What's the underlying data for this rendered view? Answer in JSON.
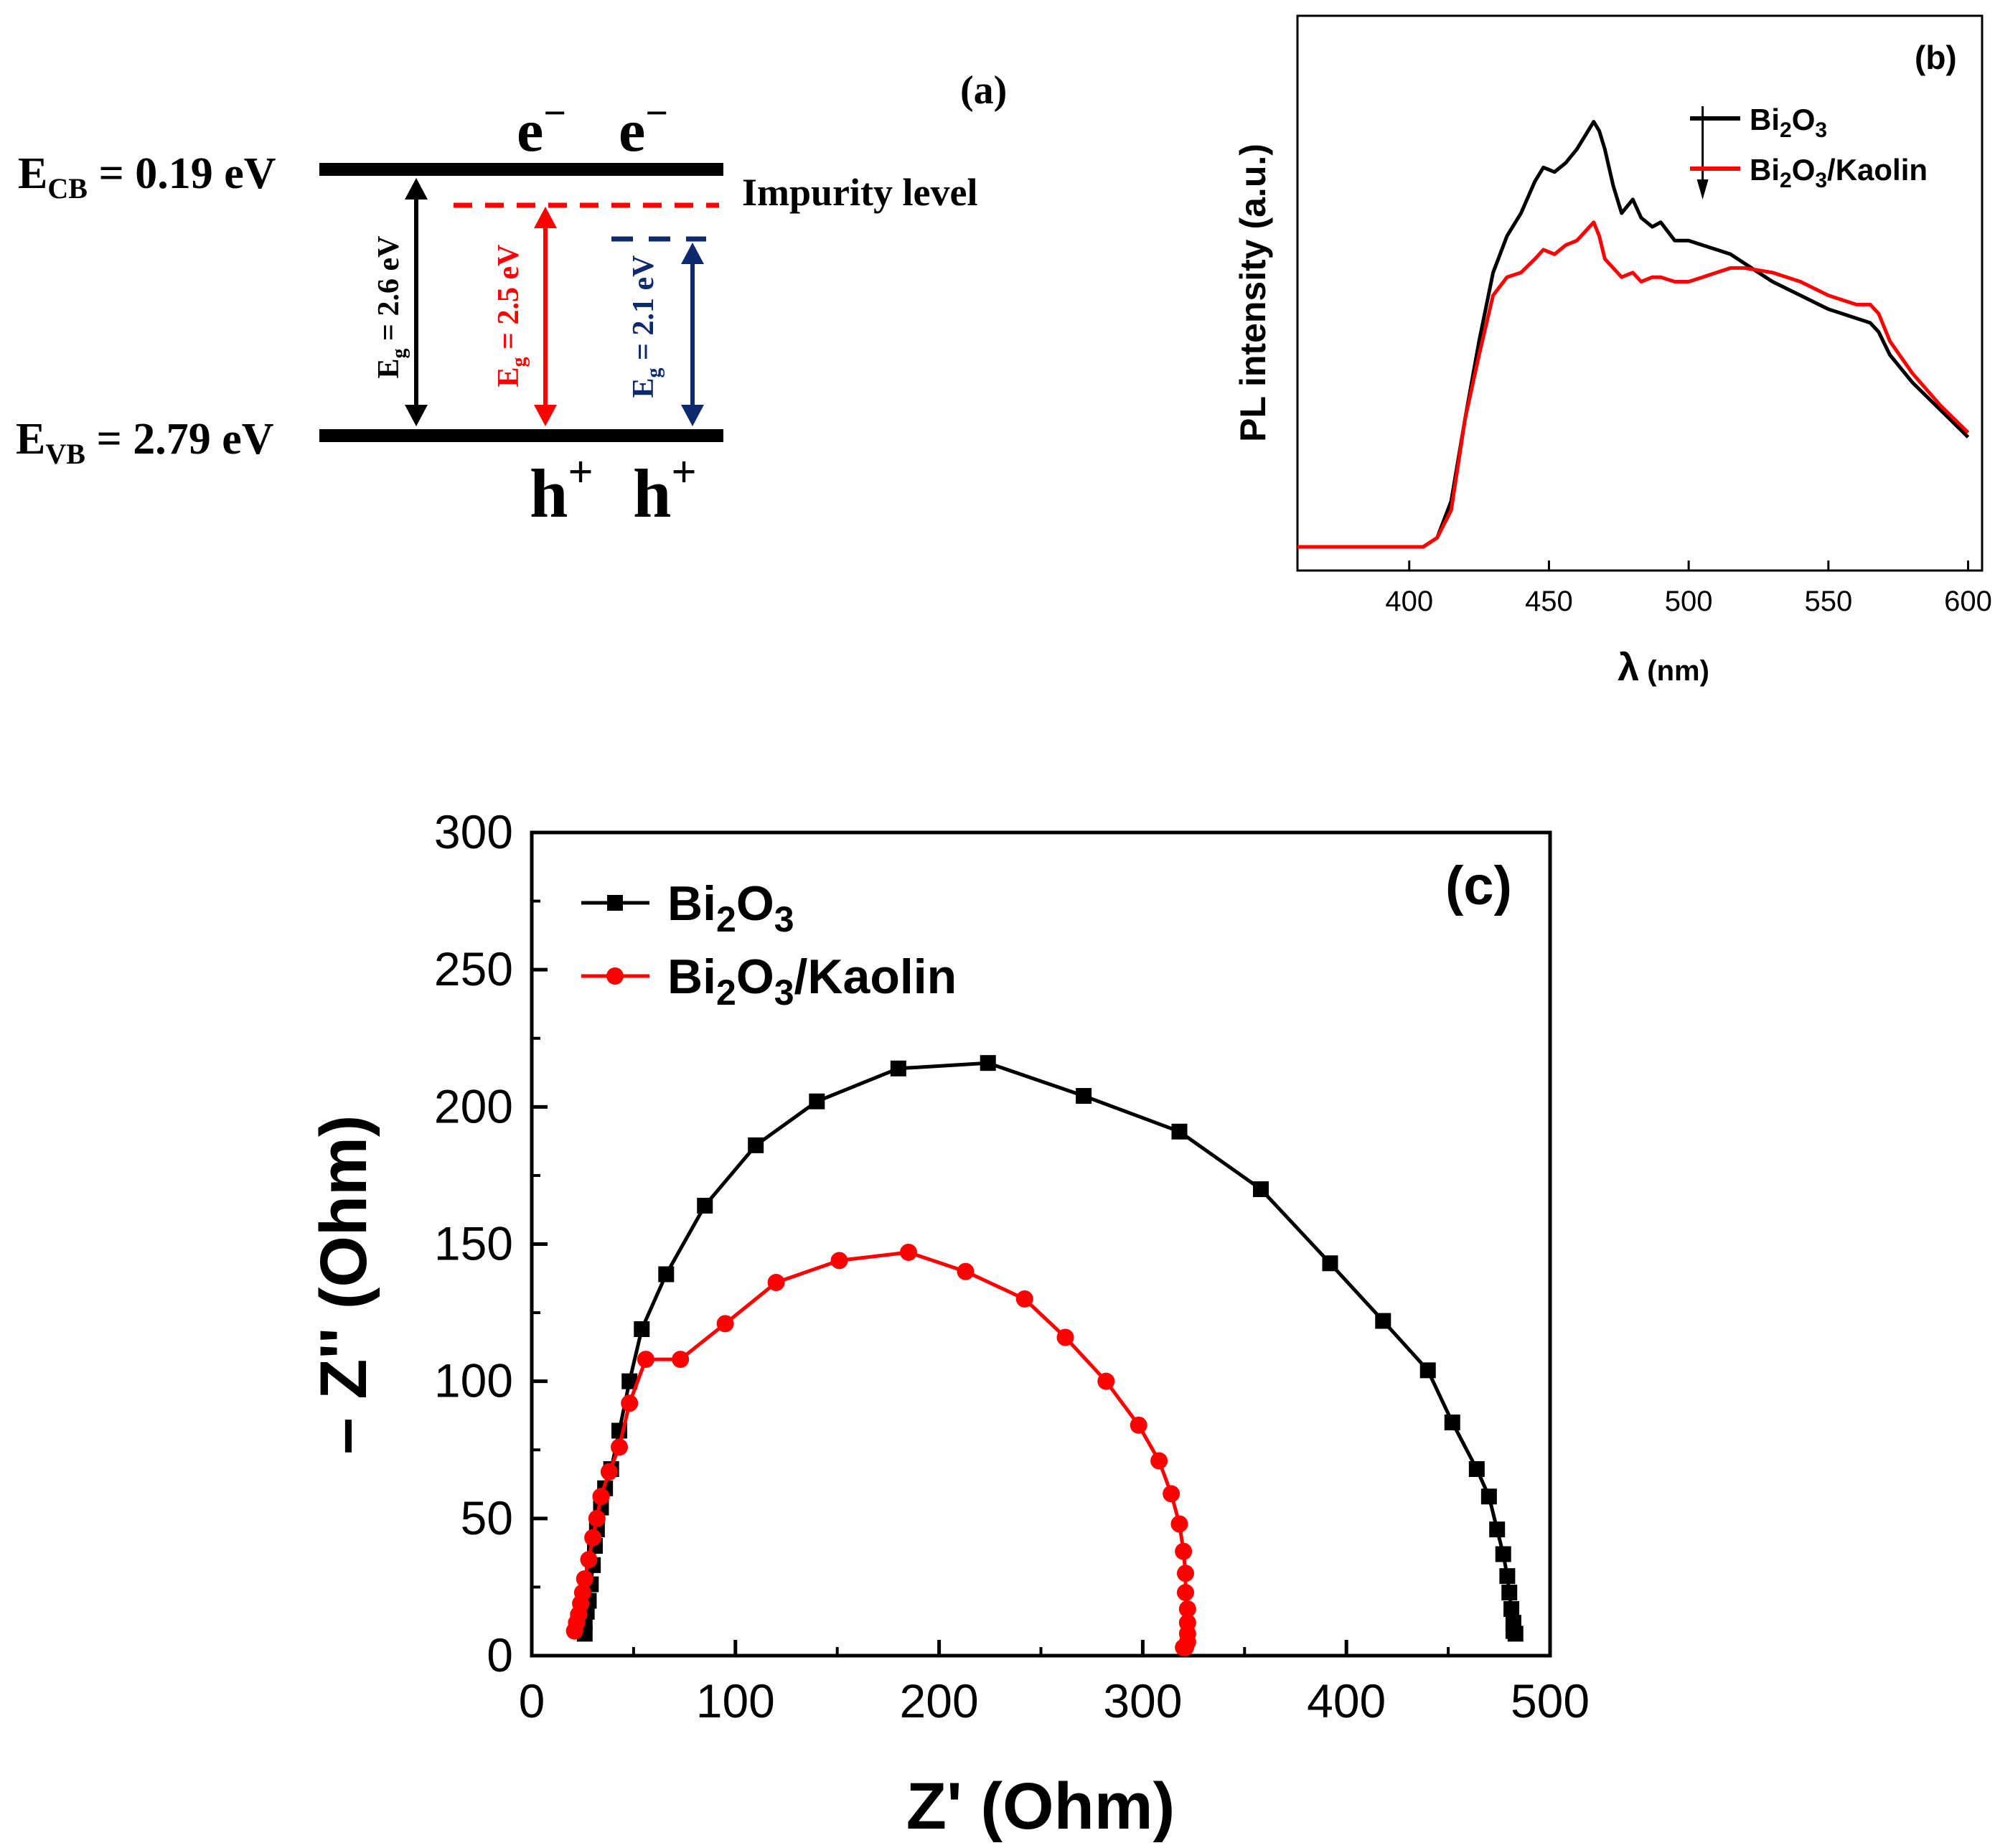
{
  "panel_a": {
    "label": "(a)",
    "cb": {
      "main": "E",
      "sub": "CB",
      "rest": " = 0.19 eV"
    },
    "vb": {
      "main": "E",
      "sub": "VB",
      "rest": " = 2.79 eV"
    },
    "impurity_label": "Impurity level",
    "electron": {
      "main": "e",
      "sup": "−"
    },
    "hole": {
      "main": "h",
      "sup": "+"
    },
    "gap1": {
      "main": "E",
      "sub": "g",
      "rest": " = 2.6 eV"
    },
    "gap2": {
      "main": "E",
      "sub": "g",
      "rest": " = 2.5 eV"
    },
    "gap3": {
      "main": "E",
      "sub": "g",
      "rest": " = 2.1 eV"
    },
    "colors": {
      "black": "#000000",
      "red": "#ff0000",
      "navy": "#0d2a6e"
    }
  },
  "chart_data": [
    {
      "type": "line",
      "panel_label": "(b)",
      "ylabel": "PL intensity (a.u.)",
      "xlabel_main": "λ",
      "xlabel_unit": " (nm)",
      "xlim": [
        360,
        605
      ],
      "ylim": [
        0,
        1
      ],
      "xticks": [
        400,
        450,
        500,
        550,
        600
      ],
      "arrow_x": 505,
      "legend_position": "top-right",
      "series": [
        {
          "name": "Bi2O3",
          "name_parts": [
            "Bi",
            "2",
            "O",
            "3",
            ""
          ],
          "color": "#000000",
          "x": [
            360,
            405,
            410,
            415,
            420,
            425,
            430,
            435,
            440,
            445,
            448,
            452,
            456,
            460,
            463,
            466,
            468,
            470,
            473,
            476,
            480,
            483,
            487,
            490,
            495,
            500,
            505,
            510,
            515,
            520,
            530,
            540,
            550,
            560,
            565,
            568,
            572,
            580,
            590,
            600
          ],
          "y": [
            0.0,
            0.0,
            0.02,
            0.1,
            0.28,
            0.45,
            0.6,
            0.68,
            0.73,
            0.8,
            0.83,
            0.82,
            0.84,
            0.87,
            0.9,
            0.93,
            0.91,
            0.87,
            0.79,
            0.73,
            0.76,
            0.72,
            0.7,
            0.71,
            0.67,
            0.67,
            0.66,
            0.65,
            0.64,
            0.62,
            0.58,
            0.55,
            0.52,
            0.5,
            0.49,
            0.47,
            0.42,
            0.36,
            0.3,
            0.24
          ]
        },
        {
          "name": "Bi2O3/Kaolin",
          "name_parts": [
            "Bi",
            "2",
            "O",
            "3",
            "/Kaolin"
          ],
          "color": "#ff0000",
          "x": [
            360,
            405,
            410,
            415,
            420,
            425,
            430,
            435,
            440,
            445,
            448,
            452,
            456,
            460,
            463,
            466,
            468,
            470,
            473,
            476,
            480,
            483,
            487,
            490,
            495,
            500,
            505,
            510,
            515,
            520,
            530,
            540,
            550,
            560,
            565,
            568,
            572,
            580,
            590,
            600
          ],
          "y": [
            0.0,
            0.0,
            0.02,
            0.08,
            0.28,
            0.42,
            0.55,
            0.59,
            0.6,
            0.63,
            0.65,
            0.64,
            0.66,
            0.67,
            0.69,
            0.71,
            0.68,
            0.63,
            0.61,
            0.59,
            0.6,
            0.58,
            0.59,
            0.59,
            0.58,
            0.58,
            0.59,
            0.6,
            0.61,
            0.61,
            0.6,
            0.58,
            0.55,
            0.53,
            0.53,
            0.51,
            0.45,
            0.38,
            0.31,
            0.25
          ]
        }
      ]
    },
    {
      "type": "scatter",
      "panel_label": "(c)",
      "xlabel": "Z' (Ohm)",
      "ylabel": "– Z'' (Ohm)",
      "xlim": [
        0,
        500
      ],
      "ylim": [
        0,
        300
      ],
      "xticks": [
        0,
        100,
        200,
        300,
        400,
        500
      ],
      "yticks": [
        0,
        50,
        100,
        150,
        200,
        250,
        300
      ],
      "legend_position": "top-left",
      "series": [
        {
          "name": "Bi2O3",
          "name_parts": [
            "Bi",
            "2",
            "O",
            "3",
            ""
          ],
          "color": "#000000",
          "marker": "square",
          "x": [
            26,
            26,
            27,
            28,
            29,
            30,
            31,
            32,
            34,
            36,
            39,
            43,
            48,
            54,
            66,
            85,
            110,
            140,
            180,
            224,
            271,
            318,
            358,
            392,
            418,
            440,
            452,
            464,
            470,
            474,
            477,
            479,
            480,
            481,
            482,
            482,
            483
          ],
          "y": [
            8,
            12,
            16,
            20,
            26,
            33,
            40,
            46,
            54,
            61,
            68,
            82,
            100,
            119,
            139,
            164,
            186,
            202,
            214,
            216,
            204,
            191,
            170,
            143,
            122,
            104,
            85,
            68,
            58,
            46,
            37,
            29,
            23,
            17,
            12,
            9,
            8
          ],
          "marker_count": 37
        },
        {
          "name": "Bi2O3/Kaolin",
          "name_parts": [
            "Bi",
            "2",
            "O",
            "3",
            "/Kaolin"
          ],
          "color": "#ff0000",
          "marker": "circle",
          "x": [
            21,
            22,
            23,
            24,
            25,
            26,
            28,
            30,
            32,
            34,
            38,
            43,
            48,
            56,
            73,
            95,
            120,
            151,
            185,
            213,
            242,
            262,
            282,
            298,
            308,
            314,
            318,
            320,
            321,
            321,
            322,
            322,
            322,
            322,
            321,
            320
          ],
          "y": [
            9,
            12,
            15,
            19,
            23,
            28,
            35,
            43,
            50,
            58,
            67,
            76,
            92,
            108,
            108,
            121,
            136,
            144,
            147,
            140,
            130,
            116,
            100,
            84,
            71,
            59,
            48,
            38,
            30,
            23,
            17,
            12,
            8,
            5,
            3,
            3
          ],
          "marker_count": 36
        }
      ]
    }
  ]
}
